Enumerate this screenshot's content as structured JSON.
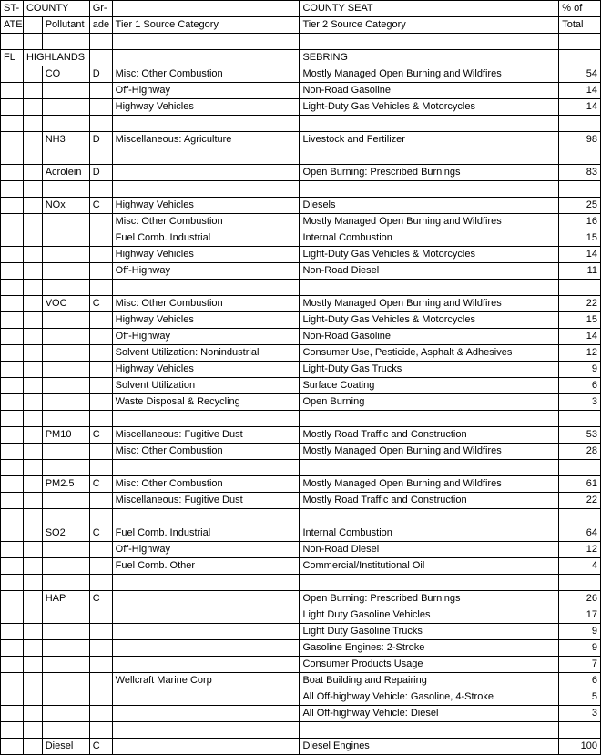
{
  "headers": {
    "state_top": "ST-",
    "state_bot": "ATE",
    "county": "COUNTY",
    "grade_top": "Gr-",
    "grade_bot": "ade",
    "pollutant": "Pollutant",
    "tier1": "Tier 1 Source Category",
    "county_seat": "COUNTY SEAT",
    "tier2": "Tier 2 Source Category",
    "pct_top": "% of",
    "pct_bot": "Total"
  },
  "state": "FL",
  "county": "HIGHLANDS",
  "county_seat": "SEBRING",
  "groups": [
    {
      "pollutant": "CO",
      "grade": "D",
      "rows": [
        {
          "t1": "Misc: Other Combustion",
          "t2": "Mostly Managed Open Burning and Wildfires",
          "pct": "54"
        },
        {
          "t1": "Off-Highway",
          "t2": "Non-Road Gasoline",
          "pct": "14"
        },
        {
          "t1": "Highway Vehicles",
          "t2": "Light-Duty Gas Vehicles & Motorcycles",
          "pct": "14"
        }
      ]
    },
    {
      "pollutant": "NH3",
      "grade": "D",
      "rows": [
        {
          "t1": "Miscellaneous: Agriculture",
          "t2": "Livestock and Fertilizer",
          "pct": "98"
        }
      ]
    },
    {
      "pollutant": "Acrolein",
      "grade": "D",
      "rows": [
        {
          "t1": "",
          "t2": "Open Burning:  Prescribed Burnings",
          "pct": "83"
        }
      ]
    },
    {
      "pollutant": "NOx",
      "grade": "C",
      "rows": [
        {
          "t1": "Highway Vehicles",
          "t2": "Diesels",
          "pct": "25"
        },
        {
          "t1": "Misc: Other Combustion",
          "t2": "Mostly Managed Open Burning and Wildfires",
          "pct": "16"
        },
        {
          "t1": "Fuel Comb. Industrial",
          "t2": "Internal Combustion",
          "pct": "15"
        },
        {
          "t1": "Highway Vehicles",
          "t2": "Light-Duty Gas Vehicles & Motorcycles",
          "pct": "14"
        },
        {
          "t1": "Off-Highway",
          "t2": "Non-Road Diesel",
          "pct": "11"
        }
      ]
    },
    {
      "pollutant": "VOC",
      "grade": "C",
      "rows": [
        {
          "t1": "Misc: Other Combustion",
          "t2": "Mostly Managed Open Burning and Wildfires",
          "pct": "22"
        },
        {
          "t1": "Highway Vehicles",
          "t2": "Light-Duty Gas Vehicles & Motorcycles",
          "pct": "15"
        },
        {
          "t1": "Off-Highway",
          "t2": "Non-Road Gasoline",
          "pct": "14"
        },
        {
          "t1": "Solvent Utilization: Nonindustrial",
          "t2": "Consumer Use, Pesticide, Asphalt & Adhesives",
          "pct": "12"
        },
        {
          "t1": "Highway Vehicles",
          "t2": "Light-Duty Gas Trucks",
          "pct": "9"
        },
        {
          "t1": "Solvent Utilization",
          "t2": "Surface Coating",
          "pct": "6"
        },
        {
          "t1": "Waste Disposal & Recycling",
          "t2": "Open Burning",
          "pct": "3"
        }
      ]
    },
    {
      "pollutant": "PM10",
      "grade": "C",
      "rows": [
        {
          "t1": "Miscellaneous: Fugitive Dust",
          "t2": "Mostly Road Traffic and Construction",
          "pct": "53"
        },
        {
          "t1": "Misc: Other Combustion",
          "t2": "Mostly Managed Open Burning and Wildfires",
          "pct": "28"
        }
      ]
    },
    {
      "pollutant": "PM2.5",
      "grade": "C",
      "rows": [
        {
          "t1": "Misc: Other Combustion",
          "t2": "Mostly Managed Open Burning and Wildfires",
          "pct": "61"
        },
        {
          "t1": "Miscellaneous: Fugitive Dust",
          "t2": "Mostly Road Traffic and Construction",
          "pct": "22"
        }
      ]
    },
    {
      "pollutant": "SO2",
      "grade": "C",
      "rows": [
        {
          "t1": "Fuel Comb. Industrial",
          "t2": "Internal Combustion",
          "pct": "64"
        },
        {
          "t1": "Off-Highway",
          "t2": "Non-Road Diesel",
          "pct": "12"
        },
        {
          "t1": "Fuel Comb. Other",
          "t2": "Commercial/Institutional Oil",
          "pct": "4"
        }
      ]
    },
    {
      "pollutant": "HAP",
      "grade": "C",
      "rows": [
        {
          "t1": "",
          "t2": "Open Burning:  Prescribed Burnings",
          "pct": "26"
        },
        {
          "t1": "",
          "t2": "Light Duty Gasoline Vehicles",
          "pct": "17"
        },
        {
          "t1": "",
          "t2": "Light Duty Gasoline Trucks",
          "pct": "9"
        },
        {
          "t1": "",
          "t2": "Gasoline Engines: 2-Stroke",
          "pct": "9"
        },
        {
          "t1": "",
          "t2": "Consumer Products Usage",
          "pct": "7"
        },
        {
          "t1": "Wellcraft Marine Corp",
          "t2": "Boat Building and Repairing",
          "pct": "6"
        },
        {
          "t1": "",
          "t2": "All Off-highway Vehicle: Gasoline, 4-Stroke",
          "pct": "5"
        },
        {
          "t1": "",
          "t2": "All Off-highway Vehicle: Diesel",
          "pct": "3"
        }
      ]
    },
    {
      "pollutant": "Diesel",
      "grade": "C",
      "rows": [
        {
          "t1": "",
          "t2": "Diesel Engines",
          "pct": "100"
        }
      ]
    }
  ]
}
